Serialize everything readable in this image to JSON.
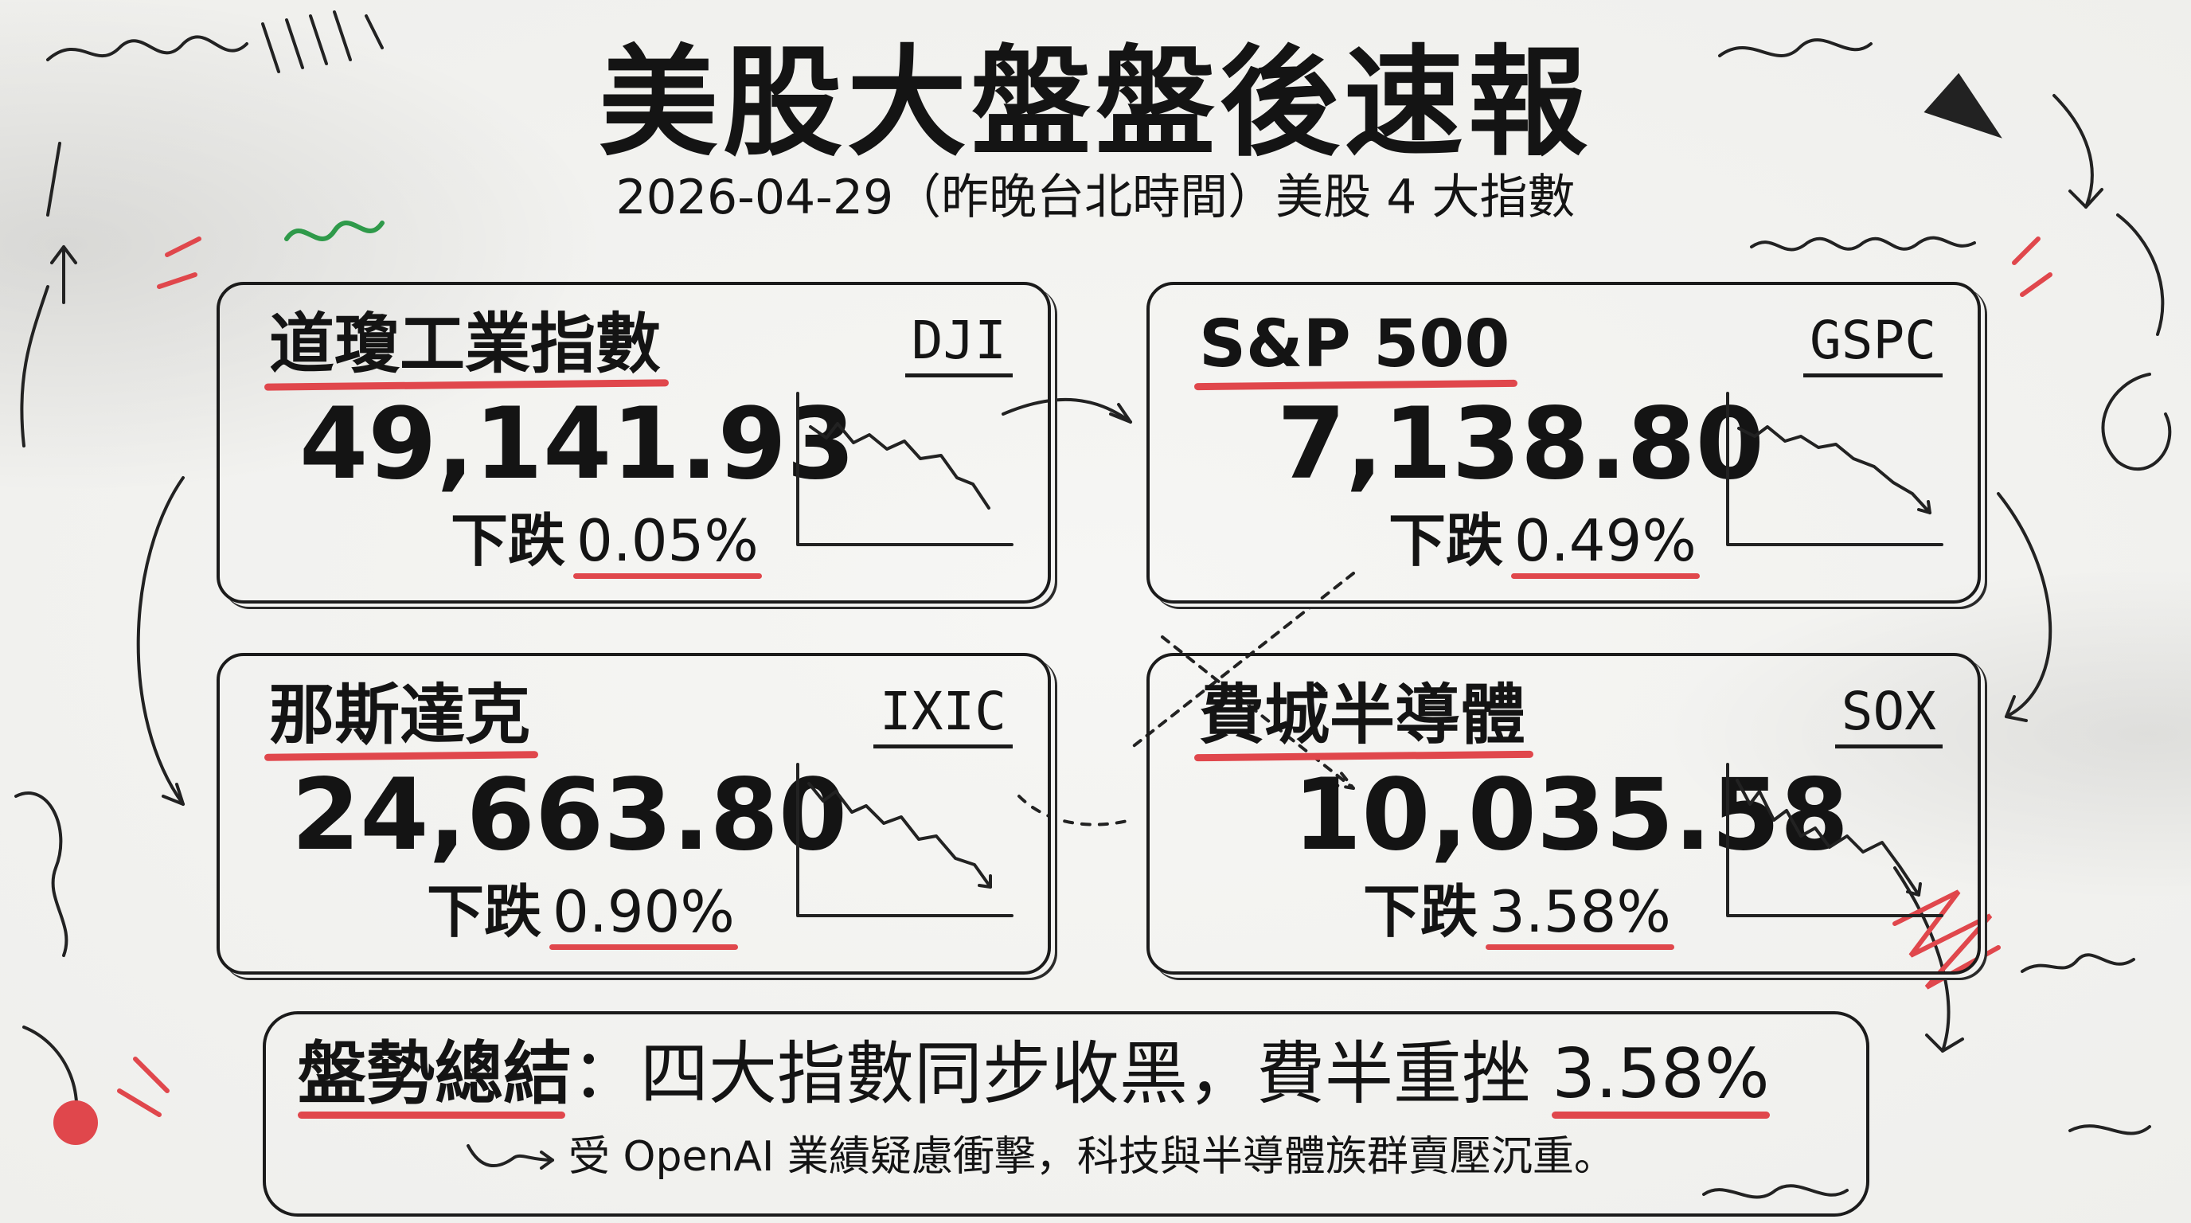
{
  "title": "美股大盤盤後速報",
  "subtitle": "2026-04-29（昨晚台北時間）美股 4 大指數",
  "indices": [
    {
      "name": "道瓊工業指數",
      "ticker": "DJI",
      "value": "49,141.93",
      "change_label": "下跌",
      "change_pct": "0.05%"
    },
    {
      "name": "S&P 500",
      "ticker": "GSPC",
      "value": "7,138.80",
      "change_label": "下跌",
      "change_pct": "0.49%"
    },
    {
      "name": "那斯達克",
      "ticker": "IXIC",
      "value": "24,663.80",
      "change_label": "下跌",
      "change_pct": "0.90%"
    },
    {
      "name": "費城半導體",
      "ticker": "SOX",
      "value": "10,035.58",
      "change_label": "下跌",
      "change_pct": "3.58%"
    }
  ],
  "summary": {
    "label": "盤勢總結",
    "separator": "：",
    "text": "四大指數同步收黑，費半重挫 ",
    "pct": "3.58%",
    "note": "受 OpenAI 業績疑慮衝擊，科技與半導體族群賣壓沉重。"
  },
  "colors": {
    "accent_red": "#e0474c",
    "ink": "#141414",
    "accent_green": "#2f9a4a",
    "paper": "#f2f2f0"
  }
}
